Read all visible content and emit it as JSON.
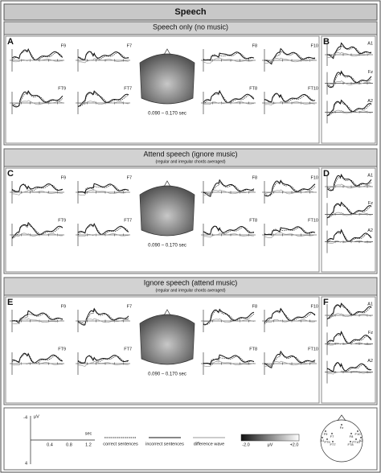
{
  "header": {
    "title": "Speech"
  },
  "sections": [
    {
      "title": "Speech only (no music)",
      "panel_left": "A",
      "panel_right": "B",
      "electrodes": [
        "F9",
        "F7",
        "F8",
        "F10",
        "FT9",
        "FT7",
        "FT8",
        "FT10"
      ],
      "right_electrodes": [
        "A1",
        "Fz",
        "A2"
      ],
      "time_window": "0.090 – 0.170 sec"
    },
    {
      "title": "Attend speech (ignore music)",
      "subtitle": "(regular and irregular chords averaged)",
      "panel_left": "C",
      "panel_right": "D",
      "electrodes": [
        "F9",
        "F7",
        "F8",
        "F10",
        "FT9",
        "FT7",
        "FT8",
        "FT10"
      ],
      "right_electrodes": [
        "A1",
        "Fz",
        "A2"
      ],
      "time_window": "0.090 – 0.170 sec"
    },
    {
      "title": "Ignore speech (attend music)",
      "subtitle": "(regular and irregular chords averaged)",
      "panel_left": "E",
      "panel_right": "F",
      "electrodes": [
        "F9",
        "F7",
        "F8",
        "F10",
        "FT9",
        "FT7",
        "FT8",
        "FT10"
      ],
      "right_electrodes": [
        "A1",
        "Fz",
        "A2"
      ],
      "time_window": "0.090 – 0.170 sec"
    }
  ],
  "legend": {
    "y_unit": "μV",
    "y_ticks": [
      "-4",
      "4"
    ],
    "x_ticks": [
      "0.4",
      "0.8",
      "1.2"
    ],
    "x_unit": "sec",
    "items": [
      "correct sentences",
      "incorrect sentences",
      "difference wave"
    ],
    "colorbar": {
      "min": "-2.0",
      "unit": "μV",
      "max": "+2.0"
    },
    "head_labels": [
      "F9",
      "F7",
      "FT9",
      "FT7",
      "Fz",
      "F8",
      "F10",
      "FT8",
      "FT10",
      "A1",
      "A2"
    ]
  }
}
